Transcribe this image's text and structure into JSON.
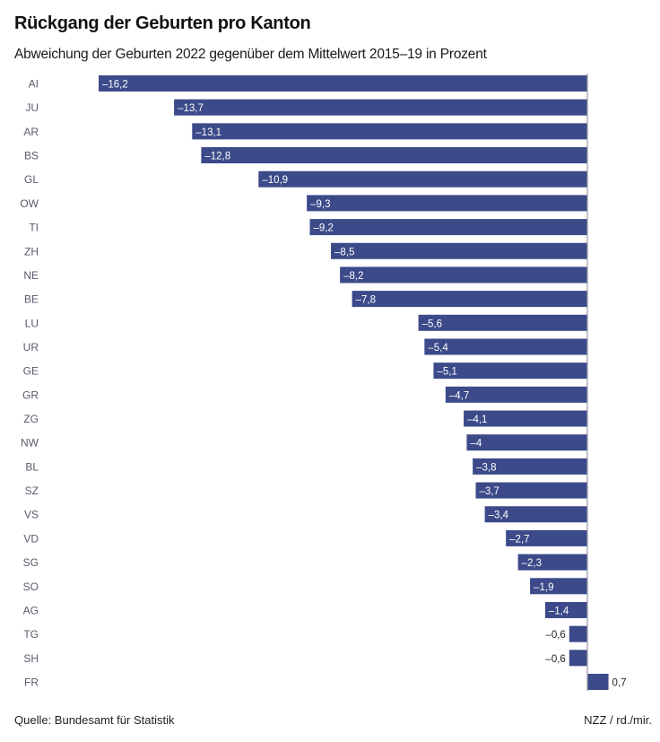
{
  "chart_data": {
    "type": "bar",
    "orientation": "horizontal",
    "title": "Rückgang der Geburten pro Kanton",
    "subtitle": "Abweichung der Geburten 2022 gegenüber dem Mittelwert 2015–19 in Prozent",
    "xlabel": "",
    "ylabel": "",
    "categories": [
      "AI",
      "JU",
      "AR",
      "BS",
      "GL",
      "OW",
      "TI",
      "ZH",
      "NE",
      "BE",
      "LU",
      "UR",
      "GE",
      "GR",
      "ZG",
      "NW",
      "BL",
      "SZ",
      "VS",
      "VD",
      "SG",
      "SO",
      "AG",
      "TG",
      "SH",
      "FR"
    ],
    "values": [
      -16.2,
      -13.7,
      -13.1,
      -12.8,
      -10.9,
      -9.3,
      -9.2,
      -8.5,
      -8.2,
      -7.8,
      -5.6,
      -5.4,
      -5.1,
      -4.7,
      -4.1,
      -4,
      -3.8,
      -3.7,
      -3.4,
      -2.7,
      -2.3,
      -1.9,
      -1.4,
      -0.6,
      -0.6,
      0.7
    ],
    "value_labels": [
      "–16,2",
      "–13,7",
      "–13,1",
      "–12,8",
      "–10,9",
      "–9,3",
      "–9,2",
      "–8,5",
      "–8,2",
      "–7,8",
      "–5,6",
      "–5,4",
      "–5,1",
      "–4,7",
      "–4,1",
      "–4",
      "–3,8",
      "–3,7",
      "–3,4",
      "–2,7",
      "–2,3",
      "–1,9",
      "–1,4",
      "–0,6",
      "–0,6",
      "0,7"
    ],
    "xlim": [
      -16.2,
      2.4
    ],
    "grid": false,
    "legend": "none",
    "bar_color": "#3c4a89",
    "zero_line_color": "#9a9aa8"
  },
  "footer": {
    "source": "Quelle: Bundesamt für Statistik",
    "credit": "NZZ / rd./mir."
  }
}
